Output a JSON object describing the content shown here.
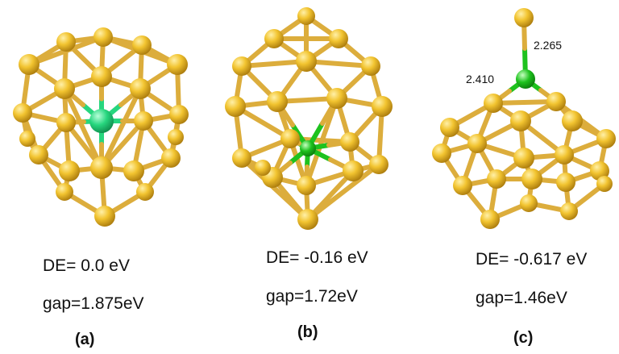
{
  "panels": [
    {
      "id": "a",
      "label": "(a)",
      "de": "DE= 0.0 eV",
      "gap": "gap=1.875eV"
    },
    {
      "id": "b",
      "label": "(b)",
      "de": "DE= -0.16 eV",
      "gap": "gap=1.72eV"
    },
    {
      "id": "c",
      "label": "(c)",
      "de": "DE= -0.617 eV",
      "gap": "gap=1.46eV",
      "bond_labels": [
        "2.265",
        "2.410"
      ]
    }
  ],
  "colors": {
    "gold_atom": "#f2c430",
    "gold_bond": "#dcad3c",
    "dopant_green_a": "#27d67e",
    "dopant_green_bc": "#1ec21e"
  }
}
